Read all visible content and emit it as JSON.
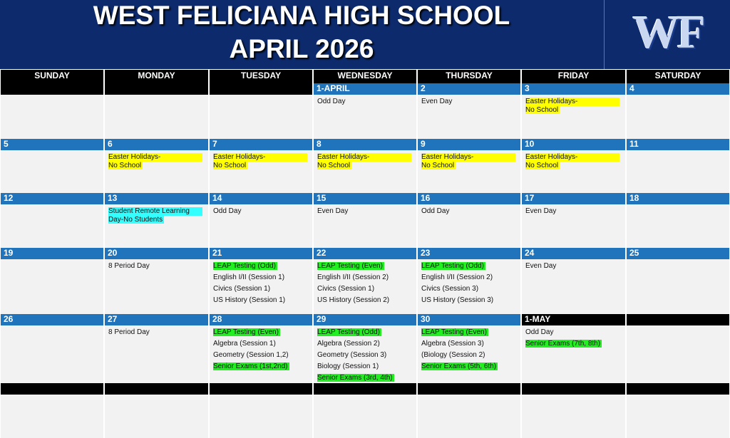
{
  "header": {
    "title_lines": [
      "WEST FELICIANA HIGH SCHOOL",
      "APRIL 2026"
    ],
    "logo_text": "WF"
  },
  "weekdays": [
    "SUNDAY",
    "MONDAY",
    "TUESDAY",
    "WEDNESDAY",
    "THURSDAY",
    "FRIDAY",
    "SATURDAY"
  ],
  "weeks": [
    {
      "cells": [
        {
          "date": null,
          "bar_color": "#000000",
          "events": []
        },
        {
          "date": null,
          "bar_color": "#000000",
          "events": []
        },
        {
          "date": null,
          "bar_color": "#000000",
          "events": []
        },
        {
          "date": "1-APRIL",
          "bar_color": "#1f74bb",
          "events": [
            {
              "lines": [
                "Odd Day"
              ]
            }
          ]
        },
        {
          "date": "2",
          "bar_color": "#1f74bb",
          "events": [
            {
              "lines": [
                "Even Day"
              ]
            }
          ]
        },
        {
          "date": "3",
          "bar_color": "#1f74bb",
          "events": [
            {
              "lines": [
                "Easter Holidays-",
                "No School"
              ],
              "highlight": "#ffff00"
            }
          ]
        },
        {
          "date": "4",
          "bar_color": "#1f74bb",
          "events": []
        }
      ]
    },
    {
      "cells": [
        {
          "date": "5",
          "bar_color": "#1f74bb",
          "events": []
        },
        {
          "date": "6",
          "bar_color": "#1f74bb",
          "events": [
            {
              "lines": [
                "Easter Holidays-",
                "No School"
              ],
              "highlight": "#ffff00"
            }
          ]
        },
        {
          "date": "7",
          "bar_color": "#1f74bb",
          "events": [
            {
              "lines": [
                "Easter Holidays-",
                "No School"
              ],
              "highlight": "#ffff00"
            }
          ]
        },
        {
          "date": "8",
          "bar_color": "#1f74bb",
          "events": [
            {
              "lines": [
                "Easter Holidays-",
                "No School"
              ],
              "highlight": "#ffff00"
            }
          ]
        },
        {
          "date": "9",
          "bar_color": "#1f74bb",
          "events": [
            {
              "lines": [
                "Easter Holidays-",
                "No School"
              ],
              "highlight": "#ffff00"
            }
          ]
        },
        {
          "date": "10",
          "bar_color": "#1f74bb",
          "events": [
            {
              "lines": [
                "Easter Holidays-",
                "No School"
              ],
              "highlight": "#ffff00"
            }
          ]
        },
        {
          "date": "11",
          "bar_color": "#1f74bb",
          "events": []
        }
      ]
    },
    {
      "cells": [
        {
          "date": "12",
          "bar_color": "#1f74bb",
          "events": []
        },
        {
          "date": "13",
          "bar_color": "#1f74bb",
          "events": [
            {
              "lines": [
                "Student Remote Learning",
                "Day-No Students"
              ],
              "highlight": "#33ffff"
            }
          ]
        },
        {
          "date": "14",
          "bar_color": "#1f74bb",
          "events": [
            {
              "lines": [
                "Odd Day"
              ]
            }
          ]
        },
        {
          "date": "15",
          "bar_color": "#1f74bb",
          "events": [
            {
              "lines": [
                "Even Day"
              ]
            }
          ]
        },
        {
          "date": "16",
          "bar_color": "#1f74bb",
          "events": [
            {
              "lines": [
                "Odd Day"
              ]
            }
          ]
        },
        {
          "date": "17",
          "bar_color": "#1f74bb",
          "events": [
            {
              "lines": [
                "Even Day"
              ]
            }
          ]
        },
        {
          "date": "18",
          "bar_color": "#1f74bb",
          "events": []
        }
      ]
    },
    {
      "cells": [
        {
          "date": "19",
          "bar_color": "#1f74bb",
          "events": []
        },
        {
          "date": "20",
          "bar_color": "#1f74bb",
          "events": [
            {
              "lines": [
                "8 Period Day"
              ]
            }
          ]
        },
        {
          "date": "21",
          "bar_color": "#1f74bb",
          "events": [
            {
              "lines": [
                "LEAP Testing (Odd)"
              ],
              "highlight": "#22ee22"
            },
            {
              "lines": [
                "English I/II (Session 1)"
              ]
            },
            {
              "lines": [
                "Civics (Session 1)"
              ]
            },
            {
              "lines": [
                "US History (Session 1)"
              ]
            }
          ]
        },
        {
          "date": "22",
          "bar_color": "#1f74bb",
          "events": [
            {
              "lines": [
                "LEAP Testing (Even)"
              ],
              "highlight": "#22ee22"
            },
            {
              "lines": [
                "English I/II (Session 2)"
              ]
            },
            {
              "lines": [
                "Civics (Session 1)"
              ]
            },
            {
              "lines": [
                "US History (Session 2)"
              ]
            }
          ]
        },
        {
          "date": "23",
          "bar_color": "#1f74bb",
          "events": [
            {
              "lines": [
                "LEAP Testing (Odd)"
              ],
              "highlight": "#22ee22"
            },
            {
              "lines": [
                "English I/II (Session 2)"
              ]
            },
            {
              "lines": [
                "Civics (Session 3)"
              ]
            },
            {
              "lines": [
                "US History (Session 3)"
              ]
            }
          ]
        },
        {
          "date": "24",
          "bar_color": "#1f74bb",
          "events": [
            {
              "lines": [
                "Even Day"
              ]
            }
          ]
        },
        {
          "date": "25",
          "bar_color": "#1f74bb",
          "events": []
        }
      ]
    },
    {
      "cells": [
        {
          "date": "26",
          "bar_color": "#1f74bb",
          "events": []
        },
        {
          "date": "27",
          "bar_color": "#1f74bb",
          "events": [
            {
              "lines": [
                "8 Period Day"
              ]
            }
          ]
        },
        {
          "date": "28",
          "bar_color": "#1f74bb",
          "events": [
            {
              "lines": [
                "LEAP Testing (Even)"
              ],
              "highlight": "#22ee22"
            },
            {
              "lines": [
                "Algebra (Session 1)"
              ]
            },
            {
              "lines": [
                "Geometry (Session 1,2)"
              ]
            },
            {
              "lines": [
                "Senior Exams (1st,2nd)"
              ],
              "highlight": "#22ee22"
            }
          ]
        },
        {
          "date": "29",
          "bar_color": "#1f74bb",
          "events": [
            {
              "lines": [
                "LEAP Testing (Odd)"
              ],
              "highlight": "#22ee22"
            },
            {
              "lines": [
                "Algebra (Session 2)"
              ]
            },
            {
              "lines": [
                "Geometry (Session 3)"
              ]
            },
            {
              "lines": [
                "Biology (Session 1)"
              ]
            },
            {
              "lines": [
                "Senior Exams (3rd, 4th)"
              ],
              "highlight": "#22ee22"
            }
          ]
        },
        {
          "date": "30",
          "bar_color": "#1f74bb",
          "events": [
            {
              "lines": [
                "LEAP Testing (Even)"
              ],
              "highlight": "#22ee22"
            },
            {
              "lines": [
                "Algebra (Session 3)"
              ]
            },
            {
              "lines": [
                "(Biology (Session 2)"
              ]
            },
            {
              "lines": [
                "Senior Exams (5th, 6th)"
              ],
              "highlight": "#22ee22"
            }
          ]
        },
        {
          "date": "1-MAY",
          "bar_color": "#000000",
          "events": [
            {
              "lines": [
                "Odd Day"
              ]
            },
            {
              "lines": [
                "Senior Exams (7th, 8th)"
              ],
              "highlight": "#22ee22"
            }
          ]
        },
        {
          "date": null,
          "bar_color": "#000000",
          "events": []
        }
      ]
    },
    {
      "cells": [
        {
          "date": null,
          "bar_color": "#000000",
          "events": []
        },
        {
          "date": null,
          "bar_color": "#000000",
          "events": []
        },
        {
          "date": null,
          "bar_color": "#000000",
          "events": []
        },
        {
          "date": null,
          "bar_color": "#000000",
          "events": []
        },
        {
          "date": null,
          "bar_color": "#000000",
          "events": []
        },
        {
          "date": null,
          "bar_color": "#000000",
          "events": []
        },
        {
          "date": null,
          "bar_color": "#000000",
          "events": []
        }
      ]
    }
  ]
}
